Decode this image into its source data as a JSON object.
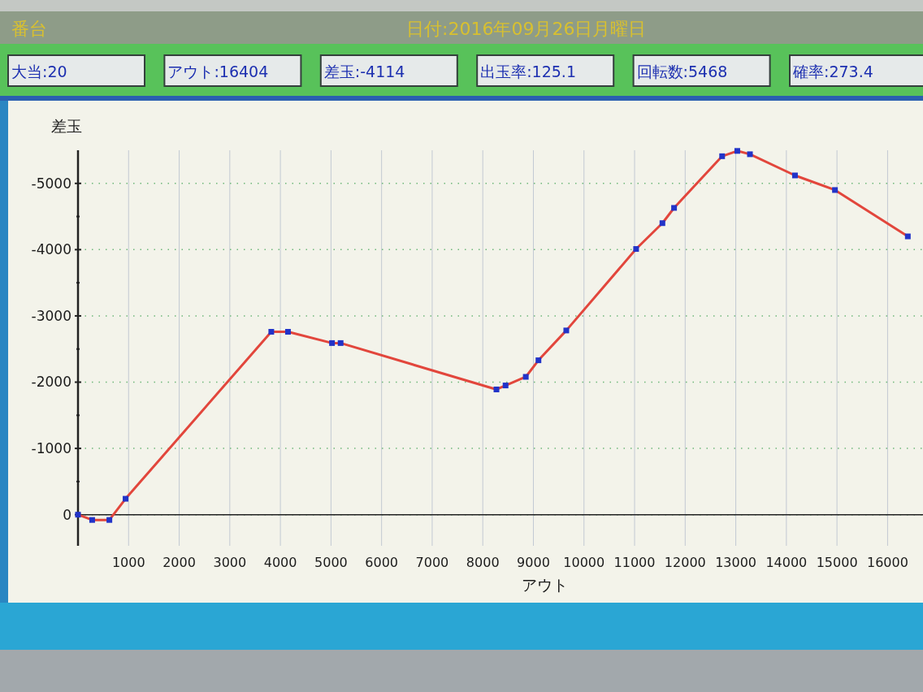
{
  "chart_data": {
    "type": "line",
    "title": "日付:2016年09月26日月曜日",
    "annotations": [
      "番台",
      "大当:20",
      "アウト:16404",
      "差玉:-4114",
      "出玉率:125.1",
      "回転数:5468",
      "確率:273.4"
    ],
    "xlabel": "アウト",
    "ylabel": "差玉",
    "x": [
      0,
      280,
      620,
      940,
      3820,
      4150,
      5020,
      5190,
      8270,
      8450,
      8850,
      9100,
      9650,
      11030,
      11550,
      11780,
      12730,
      13030,
      13280,
      14170,
      14960,
      16400
    ],
    "series": [
      {
        "color": "#e2463c",
        "colors": [
          "#2233c8",
          "#2233c8",
          "#2233c8",
          "#2233c8",
          "#2233c8",
          "#2233c8",
          "#2233c8",
          "#2233c8",
          "#2233c8",
          "#2233c8",
          "#2233c8",
          "#2233c8",
          "#2233c8",
          "#2233c8",
          "#2233c8",
          "#2233c8",
          "#2233c8",
          "#2233c8",
          "#2233c8",
          "#2233c8",
          "#2233c8",
          "#2233c8"
        ],
        "values": [
          0,
          80,
          80,
          -240,
          -2760,
          -2760,
          -2590,
          -2590,
          -1890,
          -1950,
          -2080,
          -2330,
          -2780,
          -4010,
          -4400,
          -4630,
          -5410,
          -5490,
          -5440,
          -5120,
          -4900,
          -4200
        ]
      }
    ],
    "xlim": [
      0,
      16700
    ],
    "ylim": [
      470,
      -5500
    ],
    "xticks": [
      1000,
      2000,
      3000,
      4000,
      5000,
      6000,
      7000,
      8000,
      9000,
      10000,
      11000,
      12000,
      13000,
      14000,
      15000,
      16000
    ],
    "yticks": [
      -5000,
      {
        "value": -4500,
        "label": null
      },
      -4000,
      {
        "value": -3500,
        "label": null
      },
      -3000,
      {
        "value": -2500,
        "label": null
      },
      -2000,
      {
        "value": -1500,
        "label": null
      },
      -1000,
      {
        "value": -500,
        "label": null
      },
      0
    ],
    "grid": true,
    "marker": "square",
    "line_style": "solid"
  }
}
